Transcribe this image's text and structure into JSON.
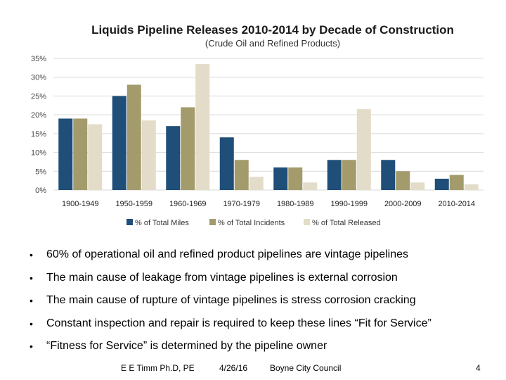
{
  "chart_data": {
    "type": "bar",
    "title": "Liquids Pipeline Releases 2010-2014 by Decade of Construction",
    "subtitle": "(Crude Oil and Refined Products)",
    "categories": [
      "1900-1949",
      "1950-1959",
      "1960-1969",
      "1970-1979",
      "1980-1989",
      "1990-1999",
      "2000-2009",
      "2010-2014"
    ],
    "series": [
      {
        "name": "% of Total Miles",
        "color": "#1f4e79",
        "values": [
          19,
          25,
          17,
          14,
          6,
          8,
          8,
          3
        ]
      },
      {
        "name": "% of Total Incidents",
        "color": "#a39b6b",
        "values": [
          19,
          28,
          22,
          8,
          6,
          8,
          5,
          4
        ]
      },
      {
        "name": "% of Total Released",
        "color": "#e3dcc8",
        "values": [
          17.5,
          18.5,
          33.5,
          3.5,
          2,
          21.5,
          2,
          1.5
        ]
      }
    ],
    "y_ticks": [
      "0%",
      "5%",
      "10%",
      "15%",
      "20%",
      "25%",
      "30%",
      "35%"
    ],
    "ylim": [
      0,
      35
    ],
    "grid": true,
    "legend_position": "bottom"
  },
  "bullets": [
    "60% of operational oil and refined product pipelines are vintage pipelines",
    "The main cause of leakage from vintage pipelines is external corrosion",
    "The main cause of rupture of vintage pipelines is stress corrosion cracking",
    "Constant inspection and repair is required to keep these lines “Fit for Service”",
    "“Fitness for Service” is determined by the pipeline owner"
  ],
  "footer": {
    "author": "E E Timm Ph.D, PE",
    "date": "4/26/16",
    "organization": "Boyne City Council",
    "page_number": "4"
  }
}
